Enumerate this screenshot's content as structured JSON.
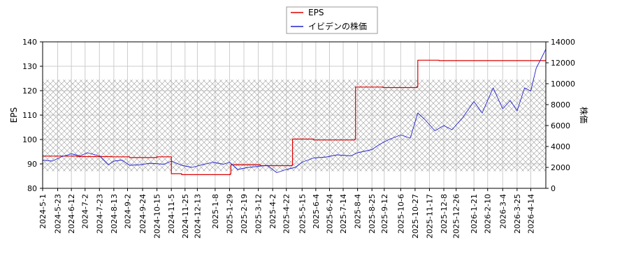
{
  "chart_data": {
    "type": "line",
    "legend": {
      "placement": "top-center",
      "entries": [
        {
          "label": "EPS",
          "color": "#dd0000"
        },
        {
          "label": "イビデンの株価",
          "color": "#2222cc"
        }
      ]
    },
    "grid": true,
    "hatched_band": {
      "y_left_from": 87,
      "y_left_to": 124.5
    },
    "y_left": {
      "label": "EPS",
      "range": [
        80,
        140
      ],
      "ticks": [
        80,
        90,
        100,
        110,
        120,
        130,
        140
      ]
    },
    "y_right": {
      "label": "株価",
      "range": [
        0,
        14000
      ],
      "ticks": [
        0,
        2000,
        4000,
        6000,
        8000,
        10000,
        12000,
        14000
      ]
    },
    "x": {
      "start": "2024-05-01",
      "end": "2026-05-06",
      "tick_labels": [
        "2024-5-1",
        "2024-5-23",
        "2024-6-12",
        "2024-7-2",
        "2024-7-23",
        "2024-8-13",
        "2024-9-2",
        "2024-9-24",
        "2024-10-15",
        "2024-11-5",
        "2024-11-25",
        "2024-12-13",
        "2025-1-8",
        "2025-1-29",
        "2025-2-19",
        "2025-3-12",
        "2025-4-2",
        "2025-4-22",
        "2025-5-15",
        "2025-6-4",
        "2025-6-24",
        "2025-7-14",
        "2025-8-4",
        "2025-8-25",
        "2025-9-12",
        "2025-10-6",
        "2025-10-27",
        "2025-11-17",
        "2025-12-8",
        "2025-12-26",
        "2026-1-21",
        "2026-2-10",
        "2026-3-4",
        "2026-3-25",
        "2026-4-14"
      ]
    },
    "series": [
      {
        "name": "EPS",
        "axis": "left",
        "color": "#dd0000",
        "points": [
          [
            "2024-05-01",
            93.2
          ],
          [
            "2024-06-20",
            93.0
          ],
          [
            "2024-08-10",
            92.9
          ],
          [
            "2024-09-05",
            92.6
          ],
          [
            "2024-10-15",
            92.9
          ],
          [
            "2024-11-03",
            92.9
          ],
          [
            "2024-11-05",
            86.0
          ],
          [
            "2024-11-20",
            85.6
          ],
          [
            "2025-01-30",
            85.9
          ],
          [
            "2025-01-31",
            89.6
          ],
          [
            "2025-03-15",
            89.3
          ],
          [
            "2025-04-30",
            89.5
          ],
          [
            "2025-05-01",
            100.2
          ],
          [
            "2025-06-01",
            99.8
          ],
          [
            "2025-07-31",
            100.2
          ],
          [
            "2025-08-01",
            121.5
          ],
          [
            "2025-09-10",
            121.3
          ],
          [
            "2025-10-30",
            121.6
          ],
          [
            "2025-10-31",
            132.5
          ],
          [
            "2025-12-01",
            132.3
          ],
          [
            "2026-05-06",
            132.5
          ]
        ]
      },
      {
        "name": "イビデンの株価",
        "axis": "right",
        "color": "#2222cc",
        "points": [
          [
            "2024-05-01",
            2700
          ],
          [
            "2024-05-15",
            2600
          ],
          [
            "2024-05-28",
            3000
          ],
          [
            "2024-06-12",
            3300
          ],
          [
            "2024-06-25",
            3100
          ],
          [
            "2024-07-05",
            3400
          ],
          [
            "2024-07-23",
            3100
          ],
          [
            "2024-08-05",
            2250
          ],
          [
            "2024-08-13",
            2600
          ],
          [
            "2024-08-25",
            2700
          ],
          [
            "2024-09-05",
            2200
          ],
          [
            "2024-09-20",
            2250
          ],
          [
            "2024-10-05",
            2400
          ],
          [
            "2024-10-25",
            2300
          ],
          [
            "2024-11-05",
            2600
          ],
          [
            "2024-11-20",
            2200
          ],
          [
            "2024-12-05",
            2000
          ],
          [
            "2024-12-20",
            2250
          ],
          [
            "2025-01-05",
            2500
          ],
          [
            "2025-01-20",
            2300
          ],
          [
            "2025-01-29",
            2500
          ],
          [
            "2025-02-10",
            1800
          ],
          [
            "2025-02-25",
            2000
          ],
          [
            "2025-03-12",
            2100
          ],
          [
            "2025-03-25",
            2200
          ],
          [
            "2025-04-08",
            1500
          ],
          [
            "2025-04-22",
            1800
          ],
          [
            "2025-05-05",
            2000
          ],
          [
            "2025-05-15",
            2500
          ],
          [
            "2025-06-01",
            2900
          ],
          [
            "2025-06-20",
            3000
          ],
          [
            "2025-07-05",
            3200
          ],
          [
            "2025-07-25",
            3100
          ],
          [
            "2025-08-04",
            3400
          ],
          [
            "2025-08-25",
            3700
          ],
          [
            "2025-09-05",
            4200
          ],
          [
            "2025-09-20",
            4700
          ],
          [
            "2025-10-06",
            5100
          ],
          [
            "2025-10-20",
            4800
          ],
          [
            "2025-10-31",
            7200
          ],
          [
            "2025-11-10",
            6600
          ],
          [
            "2025-11-25",
            5500
          ],
          [
            "2025-12-08",
            6000
          ],
          [
            "2025-12-20",
            5600
          ],
          [
            "2026-01-05",
            6800
          ],
          [
            "2026-01-21",
            8300
          ],
          [
            "2026-02-02",
            7200
          ],
          [
            "2026-02-18",
            9600
          ],
          [
            "2026-03-04",
            7600
          ],
          [
            "2026-03-15",
            8400
          ],
          [
            "2026-03-25",
            7400
          ],
          [
            "2026-04-05",
            9600
          ],
          [
            "2026-04-14",
            9300
          ],
          [
            "2026-04-22",
            11500
          ],
          [
            "2026-04-30",
            12500
          ],
          [
            "2026-05-06",
            13300
          ]
        ]
      }
    ]
  }
}
